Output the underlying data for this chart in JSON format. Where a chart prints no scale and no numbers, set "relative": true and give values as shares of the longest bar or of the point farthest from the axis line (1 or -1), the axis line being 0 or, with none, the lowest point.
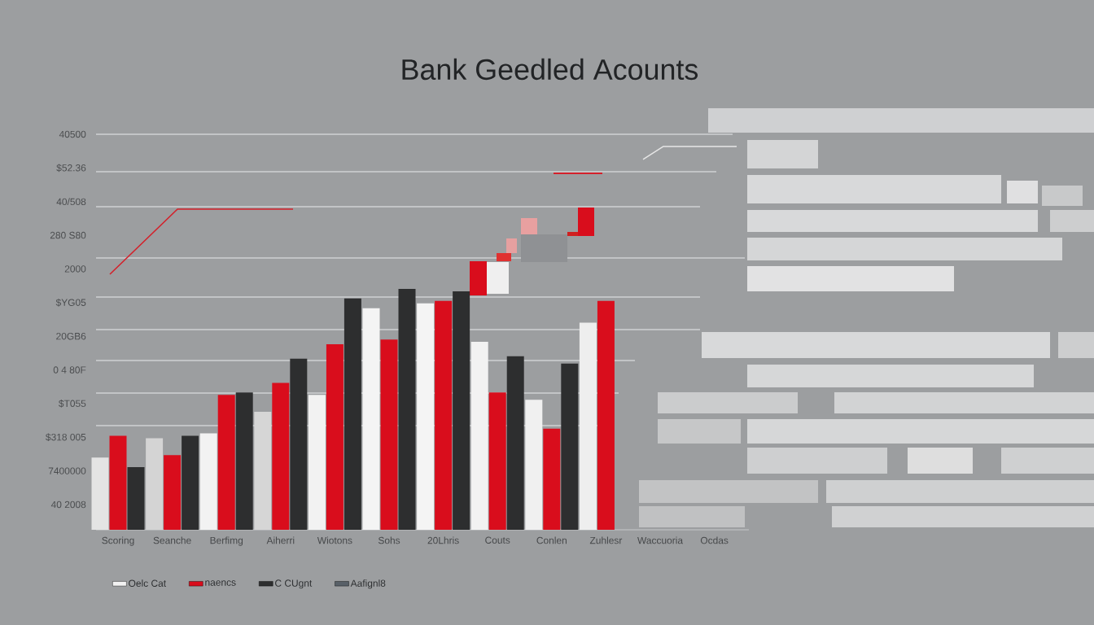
{
  "chart_data": {
    "type": "bar",
    "title": "Bank Geedled Acounts",
    "relative": true,
    "categories": [
      "Scoring",
      "Seanche",
      "Berfimg",
      "Aiherri",
      "Wiotons",
      "Sohs",
      "20Lhris",
      "Couts",
      "Conlen",
      "Zuhlesr",
      "Waccuoria",
      "Ocdas"
    ],
    "series": [
      {
        "name": "Oelc Cat",
        "color": "#f2f2f2",
        "colors": [
          "#e4e4e4",
          "#d4d4d4",
          "#f2f2f2",
          "#d6d6d6",
          "#f2f2f2",
          "#f4f4f4",
          "#f4f4f4",
          "#f2f2f2",
          "#f0f0f0",
          "#eeeeee",
          null,
          null
        ],
        "values": [
          0.3,
          0.38,
          0.4,
          0.49,
          0.56,
          0.92,
          0.94,
          0.78,
          0.54,
          0.86,
          null,
          null
        ]
      },
      {
        "name": "naencs",
        "color": "#d90d1c",
        "values": [
          0.39,
          0.31,
          0.56,
          0.61,
          0.77,
          0.79,
          0.95,
          0.57,
          0.42,
          0.95,
          null,
          null
        ]
      },
      {
        "name": "C CUgnt",
        "color": "#2d2e2f",
        "values": [
          0.26,
          0.39,
          0.57,
          0.71,
          0.96,
          1.0,
          0.99,
          0.72,
          0.69,
          null,
          null,
          null
        ]
      },
      {
        "name": "Aafignl8",
        "color": "#586068",
        "values": [
          null,
          null,
          null,
          null,
          null,
          null,
          null,
          null,
          null,
          null,
          null,
          null
        ]
      }
    ],
    "annotations": [
      "40500",
      "$52.36",
      "40/508",
      "280 S80",
      "2000",
      "$YG05",
      "20GB6",
      "0 4 80F",
      "$T055",
      "$318 005",
      "7400000",
      "40 2008"
    ],
    "legend": "bottom"
  }
}
